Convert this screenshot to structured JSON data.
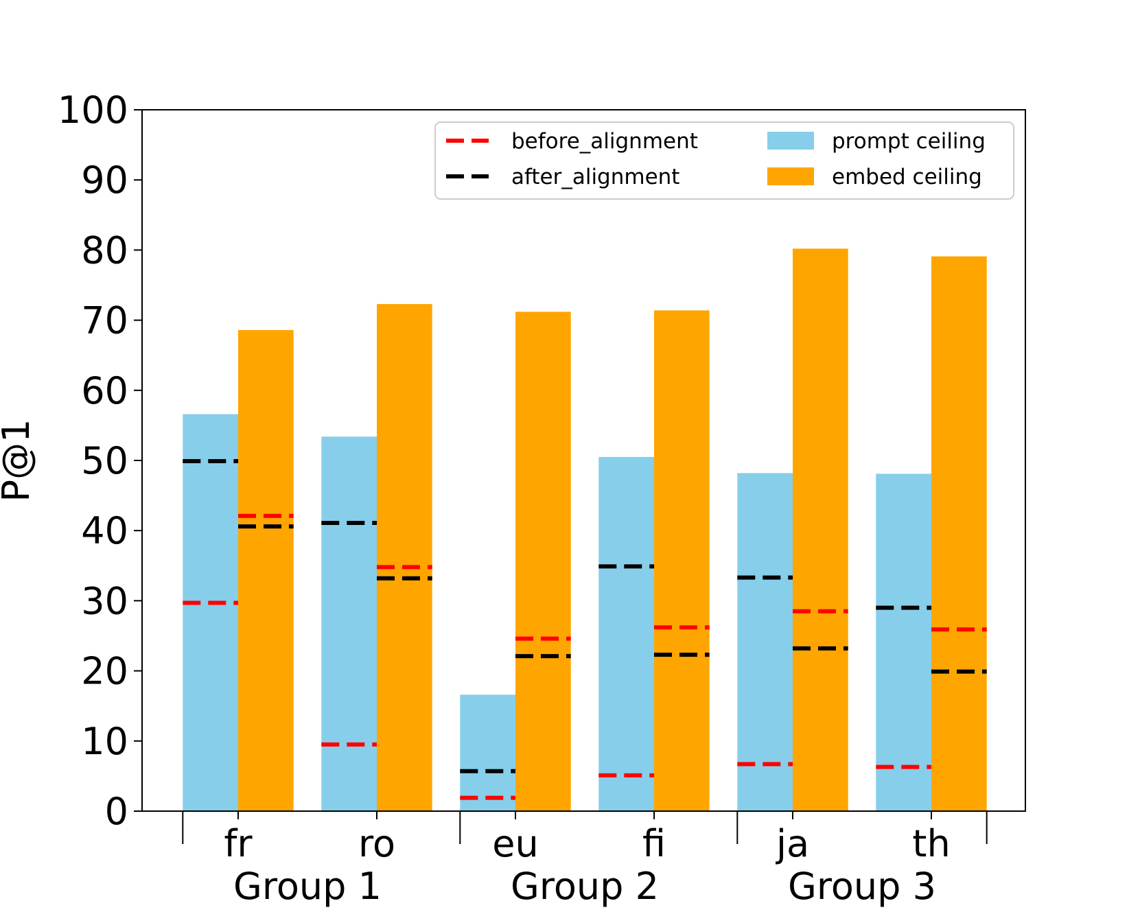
{
  "chart_data": {
    "type": "bar",
    "title": "",
    "xlabel": "",
    "ylabel": "P@1",
    "ylim": [
      0,
      100
    ],
    "yticks": [
      "0",
      "10",
      "20",
      "30",
      "40",
      "50",
      "60",
      "70",
      "80",
      "90",
      "100"
    ],
    "grid": false,
    "legend_position": "top-right",
    "categories": [
      "fr",
      "ro",
      "eu",
      "fi",
      "ja",
      "th"
    ],
    "groups": [
      {
        "label": "Group 1",
        "categories": [
          "fr",
          "ro"
        ]
      },
      {
        "label": "Group 2",
        "categories": [
          "eu",
          "fi"
        ]
      },
      {
        "label": "Group 3",
        "categories": [
          "ja",
          "th"
        ]
      }
    ],
    "series": [
      {
        "name": "prompt ceiling",
        "kind": "bar",
        "color": "#87CEEB",
        "values": [
          56.6,
          53.4,
          16.6,
          50.5,
          48.2,
          48.1
        ]
      },
      {
        "name": "embed ceiling",
        "kind": "bar",
        "color": "#FFA500",
        "values": [
          68.6,
          72.3,
          71.2,
          71.4,
          80.2,
          79.1
        ]
      }
    ],
    "lines": [
      {
        "name": "before_alignment",
        "kind": "dashed-line",
        "color": "#FF0000",
        "prompt_values": [
          29.7,
          9.5,
          1.9,
          5.1,
          6.7,
          6.3
        ],
        "embed_values": [
          42.1,
          34.8,
          24.6,
          26.2,
          28.5,
          25.9
        ]
      },
      {
        "name": "after_alignment",
        "kind": "dashed-line",
        "color": "#000000",
        "prompt_values": [
          49.9,
          41.1,
          5.7,
          34.9,
          33.3,
          29.0
        ],
        "embed_values": [
          40.6,
          33.2,
          22.1,
          22.3,
          23.2,
          19.9
        ]
      }
    ],
    "legend": [
      {
        "label": "before_alignment",
        "type": "dashed-line",
        "color": "#FF0000"
      },
      {
        "label": "after_alignment",
        "type": "dashed-line",
        "color": "#000000"
      },
      {
        "label": "prompt ceiling",
        "type": "patch",
        "color": "#87CEEB"
      },
      {
        "label": "embed ceiling",
        "type": "patch",
        "color": "#FFA500"
      }
    ]
  }
}
